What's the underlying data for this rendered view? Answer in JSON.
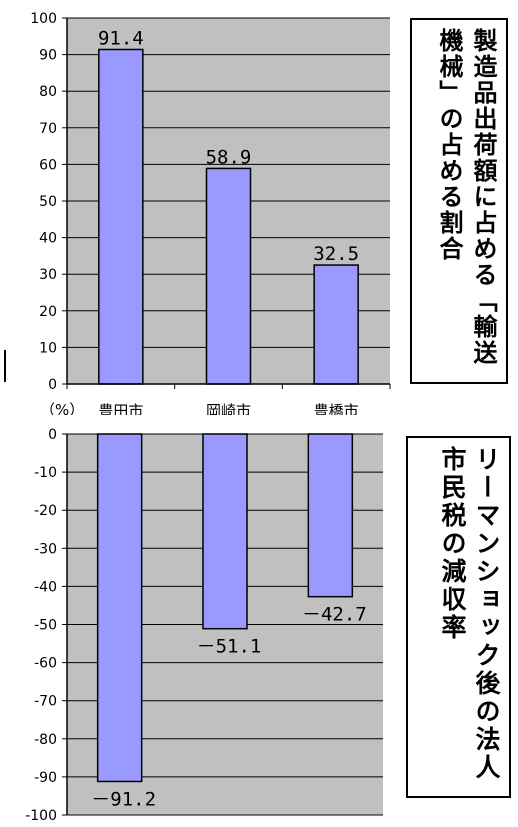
{
  "chart_data": [
    {
      "type": "bar",
      "title": "製造品出荷額に占める「輸送機械」の占める割合",
      "categories": [
        "豊田市",
        "岡崎市",
        "豊橋市"
      ],
      "values": [
        91.4,
        58.9,
        32.5
      ],
      "value_labels": [
        "91.4",
        "58.9",
        "32.5"
      ],
      "ylim": [
        0,
        100
      ],
      "yticks": [
        "0",
        "10",
        "20",
        "30",
        "40",
        "50",
        "60",
        "70",
        "80",
        "90",
        "100"
      ],
      "unit_label": "（%）",
      "grid": true,
      "bar_color": "#9999ff",
      "plot_bg": "#c0c0c0"
    },
    {
      "type": "bar",
      "title": "リーマンショック後の法人市民税の減収率",
      "categories": [
        "豊田市",
        "岡崎市",
        "豊橋市"
      ],
      "values": [
        -91.2,
        -51.1,
        -42.7
      ],
      "value_labels": [
        "－91.2",
        "－51.1",
        "－42.7"
      ],
      "ylim": [
        -100,
        0
      ],
      "yticks": [
        "0",
        "-10",
        "-20",
        "-30",
        "-40",
        "-50",
        "-60",
        "-70",
        "-80",
        "-90",
        "-100"
      ],
      "grid": true,
      "bar_color": "#9999ff",
      "plot_bg": "#c0c0c0"
    }
  ]
}
